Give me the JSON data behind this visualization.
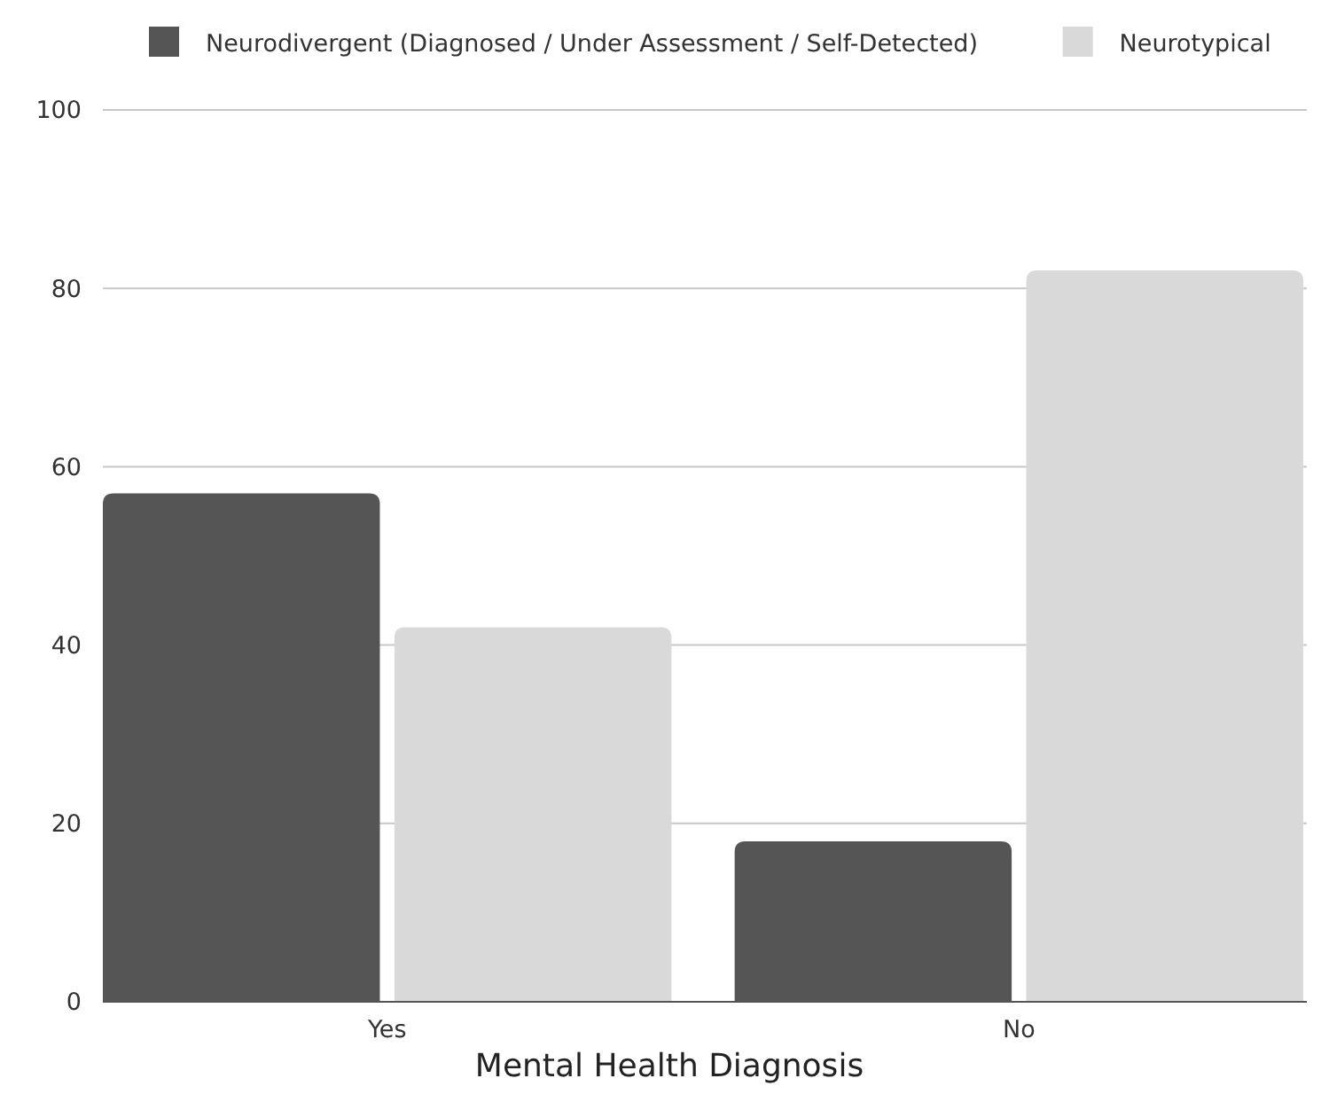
{
  "chart_data": {
    "type": "bar",
    "xlabel": "Mental Health Diagnosis",
    "categories": [
      "Yes",
      "No"
    ],
    "series": [
      {
        "name": "Neurodivergent (Diagnosed / Under Assessment / Self-Detected)",
        "color": "#555555",
        "values": [
          57,
          18
        ]
      },
      {
        "name": "Neurotypical",
        "color": "#d9d9d9",
        "values": [
          42,
          82
        ]
      }
    ],
    "ylim": [
      0,
      100
    ],
    "yticks": [
      0,
      20,
      40,
      60,
      80,
      100
    ],
    "grid": "y",
    "legend": "top"
  }
}
